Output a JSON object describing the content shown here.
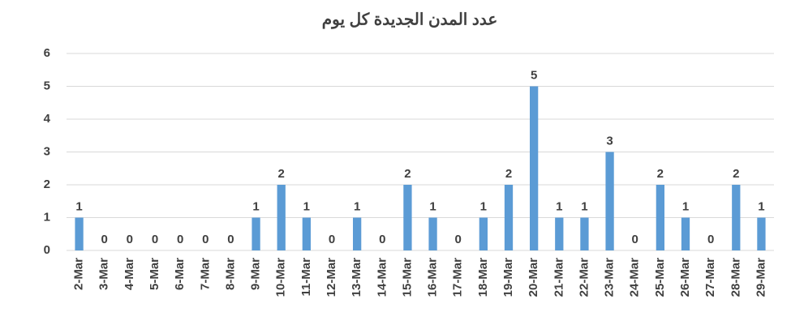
{
  "chart_data": {
    "type": "bar",
    "title": "عدد المدن الجديدة كل يوم",
    "categories": [
      "2-Mar",
      "3-Mar",
      "4-Mar",
      "5-Mar",
      "6-Mar",
      "7-Mar",
      "8-Mar",
      "9-Mar",
      "10-Mar",
      "11-Mar",
      "12-Mar",
      "13-Mar",
      "14-Mar",
      "15-Mar",
      "16-Mar",
      "17-Mar",
      "18-Mar",
      "19-Mar",
      "20-Mar",
      "21-Mar",
      "22-Mar",
      "23-Mar",
      "24-Mar",
      "25-Mar",
      "26-Mar",
      "27-Mar",
      "28-Mar",
      "29-Mar"
    ],
    "values": [
      1,
      0,
      0,
      0,
      0,
      0,
      0,
      1,
      2,
      1,
      0,
      1,
      0,
      2,
      1,
      0,
      1,
      2,
      5,
      1,
      1,
      3,
      0,
      2,
      1,
      0,
      2,
      1
    ],
    "color": "#5b9bd5",
    "ylim": [
      0,
      6
    ],
    "yticks": [
      0,
      1,
      2,
      3,
      4,
      5,
      6
    ],
    "grid": true
  }
}
